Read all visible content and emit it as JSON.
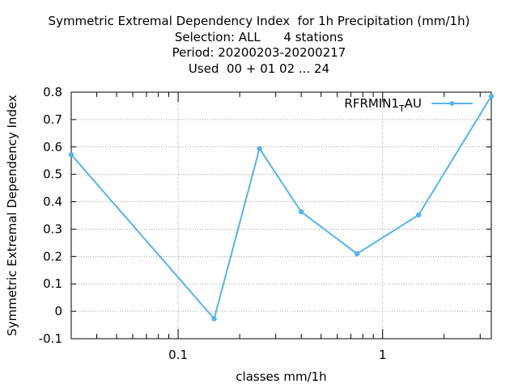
{
  "chart_data": {
    "type": "line",
    "title_lines": [
      "Symmetric Extremal Dependency Index  for 1h Precipitation (mm/1h)",
      "Selection: ALL      4 stations",
      "Period: 20200203-20200217",
      "Used  00 + 01 02 ... 24"
    ],
    "xlabel": "classes mm/1h",
    "ylabel": "Symmetric Extremal Dependency Index",
    "x_scale": "log",
    "xlim": [
      0.03,
      3.4
    ],
    "ylim": [
      -0.1,
      0.8
    ],
    "x_ticks": [
      0.1,
      1
    ],
    "x_tick_labels": [
      "0.1",
      "1"
    ],
    "y_ticks": [
      -0.1,
      0,
      0.1,
      0.2,
      0.3,
      0.4,
      0.5,
      0.6,
      0.7,
      0.8
    ],
    "y_tick_labels": [
      "-0.1",
      "0",
      "0.1",
      "0.2",
      "0.3",
      "0.4",
      "0.5",
      "0.6",
      "0.7",
      "0.8"
    ],
    "grid": true,
    "legend_position": "top-right",
    "series": [
      {
        "name_main": "RFRMIN1",
        "name_sub": "T",
        "name_tail": "AU",
        "color": "#56b4e9",
        "x": [
          0.03,
          0.15,
          0.25,
          0.4,
          0.75,
          1.5,
          3.4
        ],
        "y": [
          0.572,
          -0.027,
          0.594,
          0.363,
          0.21,
          0.352,
          0.785
        ]
      }
    ]
  }
}
